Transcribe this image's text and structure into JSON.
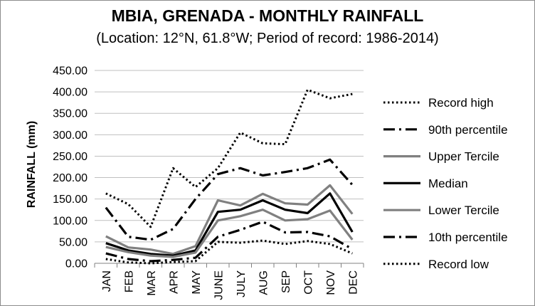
{
  "chart_data": {
    "type": "line",
    "title": "MBIA, GRENADA - MONTHLY RAINFALL",
    "subtitle": "(Location: 12°N, 61.8°W; Period of record: 1986-2014)",
    "xlabel": "",
    "ylabel": "RAINFALL (mm)",
    "ylim": [
      0,
      450
    ],
    "yticks": [
      "0.00",
      "50.00",
      "100.00",
      "150.00",
      "200.00",
      "250.00",
      "300.00",
      "350.00",
      "400.00",
      "450.00"
    ],
    "categories": [
      "JAN",
      "FEB",
      "MAR",
      "APR",
      "MAY",
      "JUNE",
      "JULY",
      "AUG",
      "SEP",
      "OCT",
      "NOV",
      "DEC"
    ],
    "grid": true,
    "legend_position": "right",
    "series": [
      {
        "name": "Record high",
        "style": "dotted",
        "color": "#000000",
        "values": [
          163,
          138,
          85,
          222,
          178,
          222,
          305,
          280,
          278,
          405,
          385,
          395
        ]
      },
      {
        "name": "90th percentile",
        "style": "dash-dot",
        "color": "#000000",
        "values": [
          130,
          62,
          55,
          80,
          150,
          208,
          222,
          205,
          213,
          222,
          242,
          183
        ]
      },
      {
        "name": "Upper Tercile",
        "style": "solid-gray",
        "color": "#808080",
        "values": [
          63,
          37,
          32,
          22,
          40,
          147,
          135,
          162,
          140,
          137,
          182,
          115
        ]
      },
      {
        "name": "Median",
        "style": "solid-black",
        "color": "#000000",
        "values": [
          47,
          30,
          22,
          18,
          30,
          120,
          125,
          147,
          125,
          117,
          163,
          73
        ]
      },
      {
        "name": "Lower Tercile",
        "style": "solid-gray",
        "color": "#808080",
        "values": [
          38,
          26,
          18,
          15,
          25,
          100,
          110,
          125,
          100,
          103,
          123,
          55
        ]
      },
      {
        "name": "10th percentile",
        "style": "dash-dot",
        "color": "#000000",
        "values": [
          23,
          10,
          5,
          8,
          13,
          62,
          78,
          97,
          72,
          73,
          63,
          33
        ]
      },
      {
        "name": "Record low",
        "style": "dotted",
        "color": "#000000",
        "values": [
          10,
          2,
          0,
          3,
          5,
          50,
          48,
          53,
          45,
          52,
          45,
          23
        ]
      }
    ]
  }
}
